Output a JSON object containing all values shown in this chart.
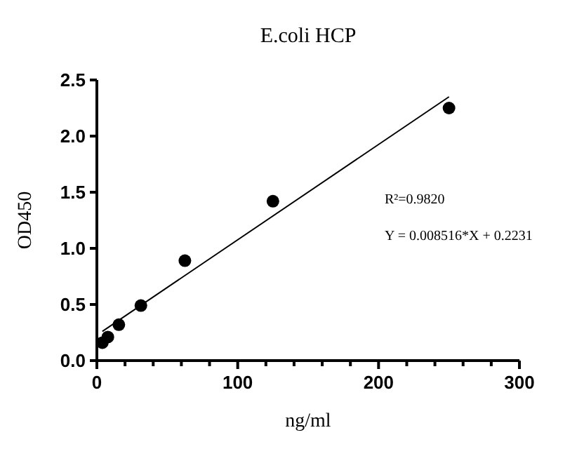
{
  "chart_data": {
    "type": "scatter",
    "title": "E.coli HCP",
    "xlabel": "ng/ml",
    "ylabel": "OD450",
    "series": [
      {
        "color": "#000000",
        "marker": "circle",
        "x": [
          3.9,
          7.8,
          15.6,
          31.25,
          62.5,
          125,
          250
        ],
        "values": [
          0.16,
          0.21,
          0.32,
          0.49,
          0.89,
          1.42,
          2.25
        ]
      },
      {
        "type": "line",
        "color": "#000000",
        "line_style": "solid",
        "x": [
          3.9,
          250
        ],
        "values": [
          0.26,
          2.35
        ]
      }
    ],
    "xlim": [
      0,
      300
    ],
    "ylim": [
      0,
      2.5
    ],
    "xticks": [
      0,
      {
        "value": 20,
        "label": null
      },
      {
        "value": 40,
        "label": null
      },
      {
        "value": 60,
        "label": null
      },
      {
        "value": 80,
        "label": null
      },
      100,
      {
        "value": 120,
        "label": null
      },
      {
        "value": 140,
        "label": null
      },
      {
        "value": 160,
        "label": null
      },
      {
        "value": 180,
        "label": null
      },
      200,
      {
        "value": 220,
        "label": null
      },
      {
        "value": 240,
        "label": null
      },
      {
        "value": 260,
        "label": null
      },
      {
        "value": 280,
        "label": null
      },
      300
    ],
    "yticks": [
      {
        "value": 0,
        "label": "0.0"
      },
      {
        "value": 0.5,
        "label": "0.5"
      },
      {
        "value": 1,
        "label": "1.0"
      },
      {
        "value": 1.5,
        "label": "1.5"
      },
      {
        "value": 2,
        "label": "2.0"
      },
      {
        "value": 2.5,
        "label": "2.5"
      }
    ],
    "annotations": [
      "R²=0.9820",
      "Y = 0.008516*X + 0.2231"
    ],
    "grid": false
  }
}
